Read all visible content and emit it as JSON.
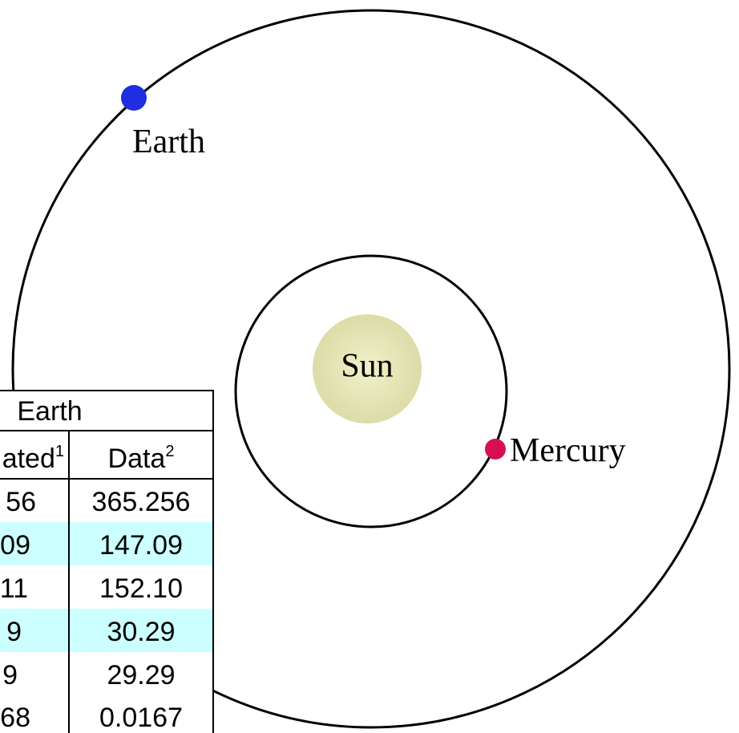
{
  "labels": {
    "earth": "Earth",
    "sun": "Sun",
    "mercury": "Mercury"
  },
  "table": {
    "header": "Earth",
    "columns": [
      {
        "text": "ated",
        "note": "1"
      },
      {
        "text": "Data",
        "note": "2"
      }
    ],
    "rows": [
      [
        "56",
        "365.256"
      ],
      [
        "09",
        "147.09"
      ],
      [
        "11",
        "152.10"
      ],
      [
        "9",
        "30.29"
      ],
      [
        "9",
        "29.29"
      ],
      [
        "68",
        "0.0167"
      ]
    ]
  }
}
